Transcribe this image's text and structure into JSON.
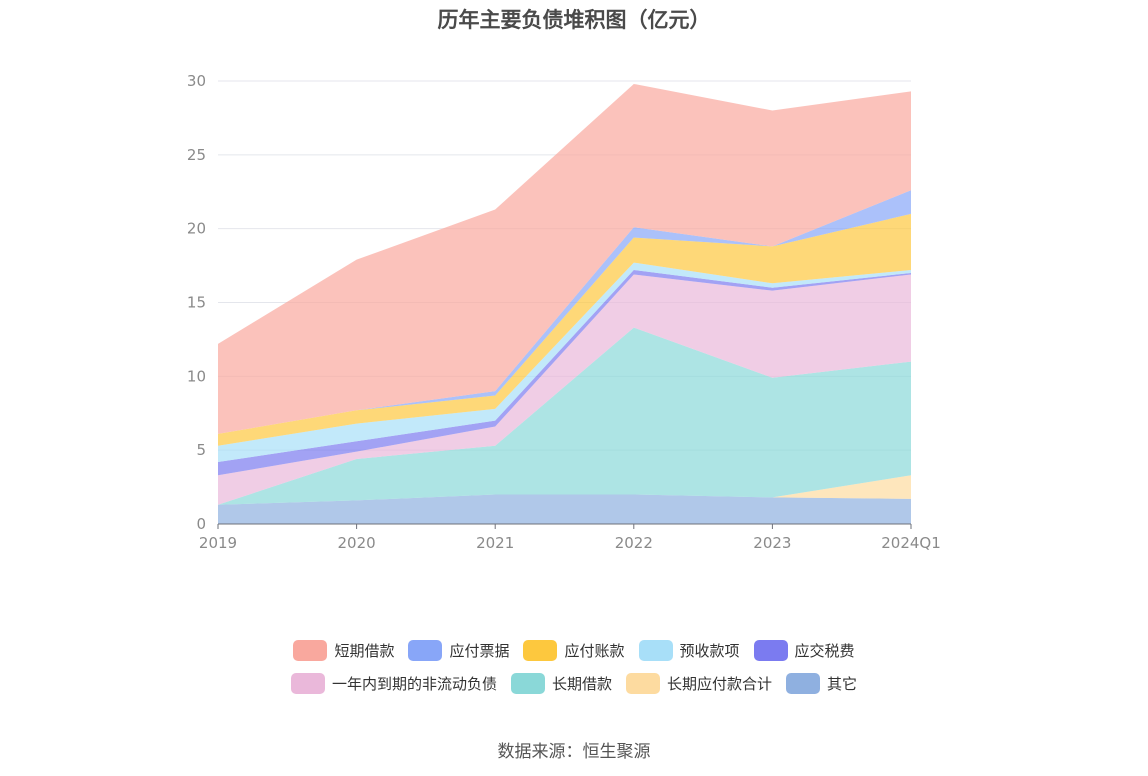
{
  "title": "历年主要负债堆积图（亿元）",
  "source": "数据来源：恒生聚源",
  "chart_data": {
    "type": "area",
    "stacked": true,
    "title": "历年主要负债堆积图（亿元）",
    "categories": [
      "2019",
      "2020",
      "2021",
      "2022",
      "2023",
      "2024Q1"
    ],
    "y_ticks": [
      "0",
      "5",
      "10",
      "15",
      "20",
      "25",
      "30"
    ],
    "ylim": [
      0,
      30
    ],
    "grid": true,
    "legend_position": "bottom",
    "series": [
      {
        "name": "其它",
        "color": "#8fb0e0",
        "values": [
          1.3,
          1.6,
          2.0,
          2.0,
          1.8,
          1.7
        ]
      },
      {
        "name": "长期应付款合计",
        "color": "#fddba0",
        "values": [
          0,
          0,
          0,
          0,
          0,
          1.6
        ]
      },
      {
        "name": "长期借款",
        "color": "#8ad8d8",
        "values": [
          0,
          2.8,
          3.3,
          11.3,
          8.1,
          7.7
        ]
      },
      {
        "name": "一年内到期的非流动负债",
        "color": "#eab8da",
        "values": [
          2.0,
          0.5,
          1.3,
          3.6,
          5.9,
          5.9
        ]
      },
      {
        "name": "应交税费",
        "color": "#7b7bf0",
        "values": [
          0.9,
          0.7,
          0.4,
          0.3,
          0.2,
          0.1
        ]
      },
      {
        "name": "预收款项",
        "color": "#a8dff8",
        "values": [
          1.1,
          1.2,
          0.8,
          0.5,
          0.3,
          0.2
        ]
      },
      {
        "name": "应付账款",
        "color": "#fdc83e",
        "values": [
          0.8,
          0.9,
          0.9,
          1.7,
          2.5,
          3.8
        ]
      },
      {
        "name": "应付票据",
        "color": "#88a6f8",
        "values": [
          0,
          0,
          0.3,
          0.7,
          0,
          1.6
        ]
      },
      {
        "name": "短期借款",
        "color": "#f9a89e",
        "values": [
          6.1,
          10.2,
          12.3,
          9.7,
          9.2,
          6.7
        ]
      }
    ],
    "legend_order": [
      "短期借款",
      "应付票据",
      "应付账款",
      "预收款项",
      "应交税费",
      "一年内到期的非流动负债",
      "长期借款",
      "长期应付款合计",
      "其它"
    ]
  }
}
